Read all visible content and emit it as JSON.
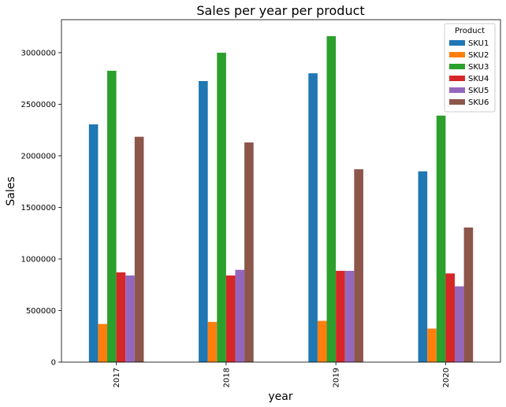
{
  "chart_data": {
    "type": "bar",
    "title": "Sales per year per product",
    "xlabel": "year",
    "ylabel": "Sales",
    "categories": [
      "2017",
      "2018",
      "2019",
      "2020"
    ],
    "ylim": [
      0,
      3320000
    ],
    "yticks": [
      0,
      500000,
      1000000,
      1500000,
      2000000,
      2500000,
      3000000
    ],
    "ytick_labels": [
      "0",
      "500000",
      "1000000",
      "1500000",
      "2000000",
      "2500000",
      "3000000"
    ],
    "grid": false,
    "legend": {
      "title": "Product",
      "position": "top-right"
    },
    "series": [
      {
        "name": "SKU1",
        "color": "#1f77b4",
        "values": [
          2305000,
          2725000,
          2800000,
          1850000
        ]
      },
      {
        "name": "SKU2",
        "color": "#ff7f0e",
        "values": [
          370000,
          390000,
          400000,
          325000
        ]
      },
      {
        "name": "SKU3",
        "color": "#2ca02c",
        "values": [
          2825000,
          3000000,
          3160000,
          2390000
        ]
      },
      {
        "name": "SKU4",
        "color": "#d62728",
        "values": [
          870000,
          840000,
          885000,
          860000
        ]
      },
      {
        "name": "SKU5",
        "color": "#9467bd",
        "values": [
          840000,
          895000,
          885000,
          735000
        ]
      },
      {
        "name": "SKU6",
        "color": "#8c564b",
        "values": [
          2185000,
          2130000,
          1870000,
          1305000
        ]
      }
    ]
  }
}
